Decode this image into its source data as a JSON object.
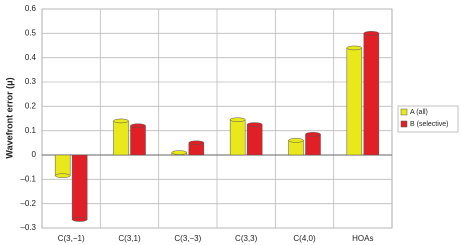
{
  "chart_data": {
    "type": "bar",
    "y_label": "Wavefront error (μ)",
    "categories": [
      "C(3,−1)",
      "C(3,1)",
      "C(3,−3)",
      "C(3,3)",
      "C(4,0)",
      "HOAs"
    ],
    "series": [
      {
        "name": "A (all)",
        "color": "#e8e81a",
        "values": [
          -0.085,
          0.14,
          0.01,
          0.145,
          0.06,
          0.44
        ]
      },
      {
        "name": "B (selective)",
        "color": "#e01f26",
        "values": [
          -0.265,
          0.12,
          0.05,
          0.125,
          0.085,
          0.5
        ]
      }
    ],
    "ylim": [
      -0.3,
      0.6
    ],
    "yticks": [
      {
        "value": -0.3,
        "label": "–0.3"
      },
      {
        "value": -0.2,
        "label": "–0.2"
      },
      {
        "value": -0.1,
        "label": "–0.1"
      },
      0,
      0.1,
      0.2,
      0.3,
      0.4,
      0.5,
      0.6
    ],
    "grid": true,
    "legend": "right"
  }
}
